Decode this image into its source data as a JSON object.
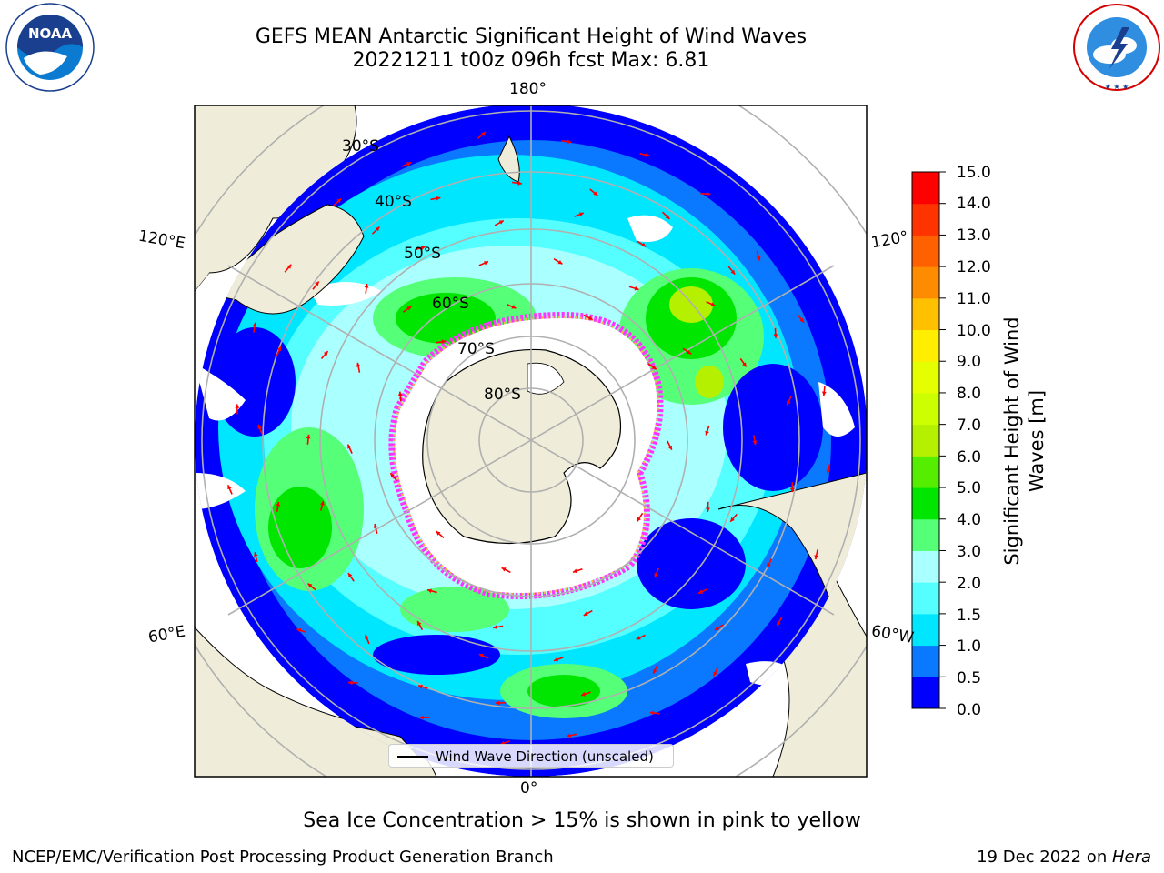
{
  "title": {
    "line1": "GEFS MEAN Antarctic Significant Height of Wind Waves",
    "line2": "20221211 t00z 096h fcst   Max: 6.81"
  },
  "logos": {
    "noaa_text": "NOAA",
    "noaa_ring": "NATIONAL OCEANIC AND ATMOSPHERIC ADMINISTRATION · U.S. DEPARTMENT OF COMMERCE",
    "nws_ring": "NATIONAL WEATHER SERVICE"
  },
  "map": {
    "lon_labels": {
      "top": "180°",
      "upper_left": "120°E",
      "upper_right": "120°",
      "lower_left": "60°E",
      "lower_right": "60°W",
      "bottom": "0°"
    },
    "lat_labels": [
      "30°S",
      "40°S",
      "50°S",
      "60°S",
      "70°S",
      "80°S"
    ],
    "colors": {
      "land": "#efedd9",
      "ice": "#ffffff",
      "coast": "#000000",
      "grid": "#b0b0b0",
      "arrow": "#ff0000",
      "sea_ice_edge": [
        "#ff33ff",
        "#ffb347"
      ]
    }
  },
  "legend": {
    "label": "Wind Wave Direction (unscaled)"
  },
  "colorbar": {
    "label": "Significant Height of Wind Waves [m]",
    "ticks": [
      "15.0",
      "14.0",
      "13.0",
      "12.0",
      "11.0",
      "10.0",
      "9.0",
      "8.0",
      "7.0",
      "6.0",
      "5.0",
      "4.0",
      "3.0",
      "2.0",
      "1.5",
      "1.0",
      "0.5",
      "0.0"
    ],
    "bands": [
      {
        "from": 0.0,
        "to": 0.5,
        "color": "#0000ff"
      },
      {
        "from": 0.5,
        "to": 1.0,
        "color": "#0a78ff"
      },
      {
        "from": 1.0,
        "to": 1.5,
        "color": "#00e6ff"
      },
      {
        "from": 1.5,
        "to": 2.0,
        "color": "#55ffff"
      },
      {
        "from": 2.0,
        "to": 3.0,
        "color": "#aaffff"
      },
      {
        "from": 3.0,
        "to": 4.0,
        "color": "#55ff77"
      },
      {
        "from": 4.0,
        "to": 5.0,
        "color": "#00e600"
      },
      {
        "from": 5.0,
        "to": 6.0,
        "color": "#55ee00"
      },
      {
        "from": 6.0,
        "to": 7.0,
        "color": "#b4f000"
      },
      {
        "from": 7.0,
        "to": 8.0,
        "color": "#ccff00"
      },
      {
        "from": 8.0,
        "to": 9.0,
        "color": "#e6ff00"
      },
      {
        "from": 9.0,
        "to": 10.0,
        "color": "#ffee00"
      },
      {
        "from": 10.0,
        "to": 11.0,
        "color": "#ffc000"
      },
      {
        "from": 11.0,
        "to": 12.0,
        "color": "#ff8c00"
      },
      {
        "from": 12.0,
        "to": 13.0,
        "color": "#ff6000"
      },
      {
        "from": 13.0,
        "to": 14.0,
        "color": "#ff3300"
      },
      {
        "from": 14.0,
        "to": 15.0,
        "color": "#ff0000"
      }
    ]
  },
  "note": "Sea Ice Concentration > 15% is shown in pink to yellow",
  "footer": {
    "left": "NCEP/EMC/Verification Post Processing Product Generation Branch",
    "right_date": "19 Dec 2022 on ",
    "right_machine": "Hera"
  }
}
